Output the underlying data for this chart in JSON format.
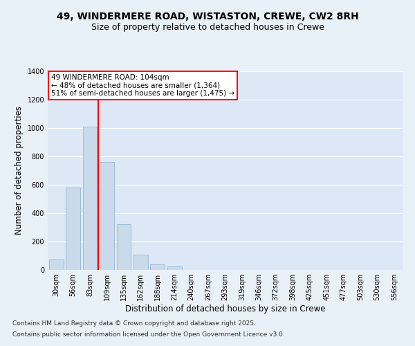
{
  "title_line1": "49, WINDERMERE ROAD, WISTASTON, CREWE, CW2 8RH",
  "title_line2": "Size of property relative to detached houses in Crewe",
  "xlabel": "Distribution of detached houses by size in Crewe",
  "ylabel": "Number of detached properties",
  "categories": [
    "30sqm",
    "56sqm",
    "83sqm",
    "109sqm",
    "135sqm",
    "162sqm",
    "188sqm",
    "214sqm",
    "240sqm",
    "267sqm",
    "293sqm",
    "319sqm",
    "346sqm",
    "372sqm",
    "398sqm",
    "425sqm",
    "451sqm",
    "477sqm",
    "503sqm",
    "530sqm",
    "556sqm"
  ],
  "values": [
    75,
    580,
    1010,
    760,
    320,
    105,
    40,
    25,
    0,
    0,
    0,
    0,
    0,
    0,
    0,
    0,
    0,
    0,
    0,
    0,
    0
  ],
  "bar_color": "#c9daea",
  "bar_edgecolor": "#a0bcd8",
  "vline_color": "red",
  "vline_pos": 2.5,
  "annotation_text": "49 WINDERMERE ROAD: 104sqm\n← 48% of detached houses are smaller (1,364)\n51% of semi-detached houses are larger (1,475) →",
  "annotation_box_color": "white",
  "annotation_box_edgecolor": "red",
  "ylim": [
    0,
    1400
  ],
  "yticks": [
    0,
    200,
    400,
    600,
    800,
    1000,
    1200,
    1400
  ],
  "bg_color": "#e8f0f8",
  "plot_bg_color": "#dce8f5",
  "grid_color": "white",
  "footer_line1": "Contains HM Land Registry data © Crown copyright and database right 2025.",
  "footer_line2": "Contains public sector information licensed under the Open Government Licence v3.0.",
  "title_fontsize": 10,
  "subtitle_fontsize": 9,
  "tick_fontsize": 7,
  "label_fontsize": 8.5,
  "ann_fontsize": 7.5,
  "footer_fontsize": 6.5
}
